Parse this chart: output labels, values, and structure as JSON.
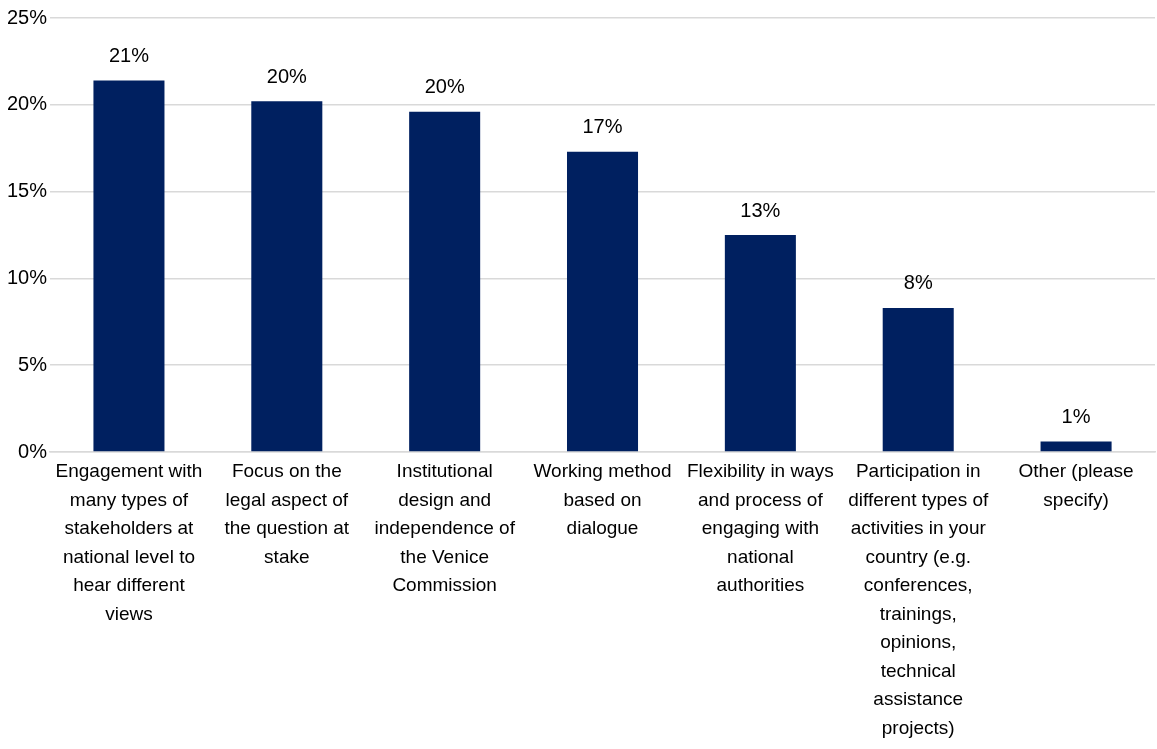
{
  "chart_data": {
    "type": "bar",
    "categories": [
      "Engagement with many types of stakeholders at national level to hear different views",
      "Focus on the legal aspect of the question at stake",
      "Institutional design and independence of the Venice Commission",
      "Working method based on dialogue",
      "Flexibility in ways and process of engaging with national authorities",
      "Participation in different types of activities in your country (e.g. conferences, trainings, opinions, technical assistance projects)",
      "Other (please specify)"
    ],
    "values": [
      21.4,
      20.2,
      19.6,
      17.3,
      12.5,
      8.3,
      0.6
    ],
    "value_labels": [
      "21%",
      "20%",
      "20%",
      "17%",
      "13%",
      "8%",
      "1%"
    ],
    "color": "#002060",
    "ylim": [
      0,
      25
    ],
    "yticks": [
      {
        "value": 0,
        "label": "0%"
      },
      {
        "value": 5,
        "label": "5%"
      },
      {
        "value": 10,
        "label": "10%"
      },
      {
        "value": 15,
        "label": "15%"
      },
      {
        "value": 20,
        "label": "20%"
      },
      {
        "value": 25,
        "label": "25%"
      }
    ],
    "grid": "y"
  }
}
